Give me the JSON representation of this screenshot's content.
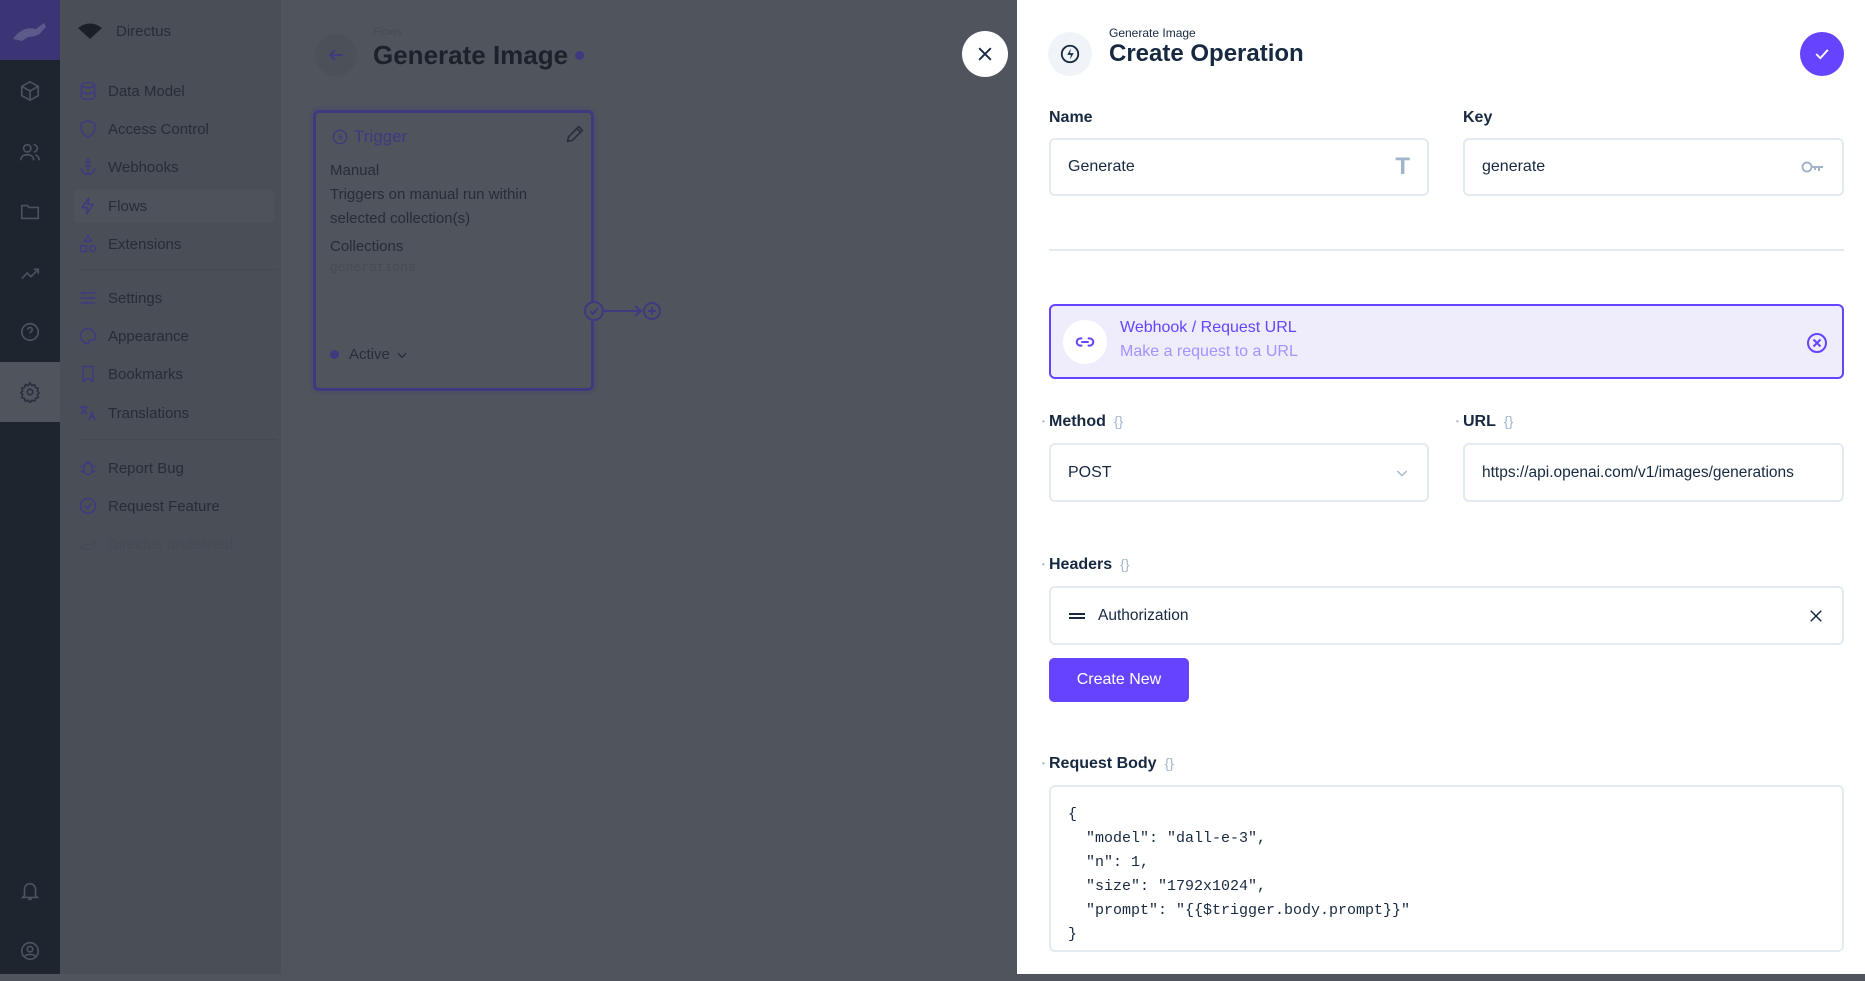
{
  "sidebar": {
    "project": "Directus",
    "items": [
      {
        "label": "Data Model",
        "icon": "database-icon"
      },
      {
        "label": "Access Control",
        "icon": "shield-icon"
      },
      {
        "label": "Webhooks",
        "icon": "anchor-icon"
      },
      {
        "label": "Flows",
        "icon": "bolt-icon"
      },
      {
        "label": "Extensions",
        "icon": "shapes-icon"
      },
      {
        "label": "Settings",
        "icon": "sliders-icon"
      },
      {
        "label": "Appearance",
        "icon": "palette-icon"
      },
      {
        "label": "Bookmarks",
        "icon": "bookmark-icon"
      },
      {
        "label": "Translations",
        "icon": "translate-icon"
      },
      {
        "label": "Report Bug",
        "icon": "bug-icon"
      },
      {
        "label": "Request Feature",
        "icon": "verified-icon"
      }
    ],
    "version": "Directus undefined"
  },
  "header": {
    "breadcrumb": "Flows",
    "title": "Generate Image"
  },
  "trigger": {
    "title": "Trigger",
    "type": "Manual",
    "description": "Triggers on manual run within selected collection(s)",
    "collections_label": "Collections",
    "collections_value": "generations",
    "status": "Active"
  },
  "drawer": {
    "subtitle": "Generate Image",
    "title": "Create Operation",
    "name_label": "Name",
    "name_value": "Generate",
    "key_label": "Key",
    "key_value": "generate",
    "operation_title": "Webhook / Request URL",
    "operation_desc": "Make a request to a URL",
    "method_label": "Method",
    "method_value": "POST",
    "url_label": "URL",
    "url_value": "https://api.openai.com/v1/images/generations",
    "headers_label": "Headers",
    "header_item": "Authorization",
    "create_new": "Create New",
    "body_label": "Request Body",
    "body_lines": [
      "{",
      "  \"model\": \"dall-e-3\",",
      "  \"n\": 1,",
      "  \"size\": \"1792x1024\",",
      "  \"prompt\": \"{{$trigger.body.prompt}}\"",
      "}"
    ],
    "braces": "{}"
  },
  "colors": {
    "accent": "#6644ff",
    "accent_bg": "#efedfc",
    "text": "#172940"
  }
}
